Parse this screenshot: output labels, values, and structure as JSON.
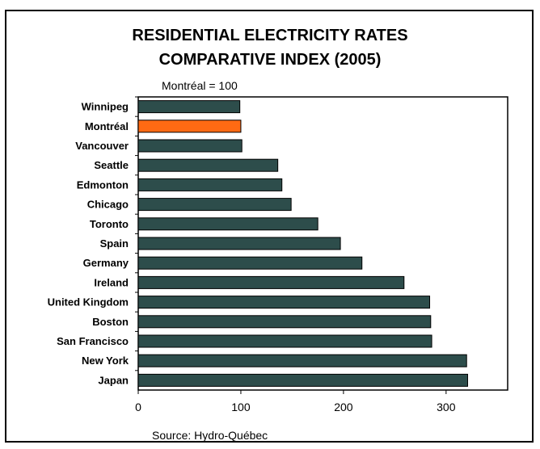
{
  "title_line1": "RESIDENTIAL ELECTRICITY RATES",
  "title_line2": "COMPARATIVE INDEX (2005)",
  "subtitle": "Montréal = 100",
  "source": "Source: Hydro-Québec",
  "colors": {
    "bar": "#2d4d4b",
    "highlight": "#ff6a13",
    "outline": "#000000"
  },
  "chart_data": {
    "type": "bar",
    "orientation": "horizontal",
    "title": "RESIDENTIAL ELECTRICITY RATES COMPARATIVE INDEX (2005)",
    "subtitle": "Montréal = 100",
    "categories": [
      "Winnipeg",
      "Montréal",
      "Vancouver",
      "Seattle",
      "Edmonton",
      "Chicago",
      "Toronto",
      "Spain",
      "Germany",
      "Ireland",
      "United Kingdom",
      "Boston",
      "San Francisco",
      "New York",
      "Japan"
    ],
    "values": [
      99,
      100,
      101,
      136,
      140,
      149,
      175,
      197,
      218,
      259,
      284,
      285,
      286,
      320,
      321
    ],
    "highlight_category": "Montréal",
    "xlim": [
      0,
      360
    ],
    "xticks": [
      0,
      100,
      200,
      300
    ],
    "xlabel": "",
    "ylabel": "",
    "grid": false,
    "legend": "none"
  }
}
